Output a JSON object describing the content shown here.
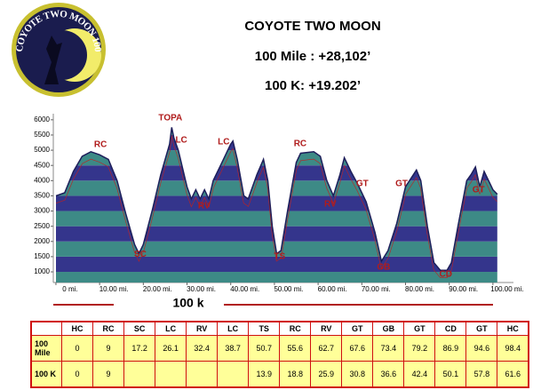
{
  "header": {
    "logo_text": "COYOTE TWO MOON 100",
    "title": "COYOTE TWO MOON",
    "line1": "100 Mile : +28,102’",
    "line2": "100 K: +19.202’"
  },
  "chart_data": {
    "type": "area",
    "x": [
      0,
      2,
      4,
      6,
      8,
      10,
      12,
      14,
      16,
      18,
      19,
      20,
      22,
      24,
      26,
      26.5,
      27,
      28,
      30,
      31,
      32,
      33,
      34,
      35,
      36,
      38,
      40,
      40.5,
      41.5,
      43,
      44,
      46,
      47.5,
      48.5,
      49.5,
      50.5,
      51.5,
      53,
      55,
      56,
      59,
      60.5,
      62,
      63.5,
      65,
      66,
      67.5,
      69,
      71,
      73,
      74.5,
      76,
      78,
      80,
      82.5,
      83.5,
      85,
      86.5,
      88,
      89.5,
      90.5,
      92,
      94,
      95,
      96,
      97,
      98,
      99,
      100,
      101
    ],
    "values": [
      3500,
      3600,
      4300,
      4800,
      4950,
      4850,
      4700,
      4000,
      2900,
      1900,
      1600,
      1900,
      3000,
      4200,
      5200,
      5750,
      5400,
      5000,
      3800,
      3400,
      3700,
      3400,
      3700,
      3400,
      4000,
      4600,
      5200,
      5300,
      4700,
      3500,
      3400,
      4200,
      4700,
      4000,
      2500,
      1600,
      1700,
      3000,
      4600,
      4900,
      4950,
      4800,
      4000,
      3500,
      4200,
      4750,
      4300,
      3900,
      3300,
      2300,
      1350,
      1700,
      2600,
      3800,
      4350,
      4000,
      2500,
      1300,
      1050,
      1050,
      1300,
      2500,
      4000,
      4200,
      4450,
      3800,
      4300,
      4000,
      3700,
      3550
    ],
    "color": "#1e1e5a",
    "band_colors": [
      "#3d8a86",
      "#34358c"
    ],
    "xlim": [
      -0.6,
      104.7
    ],
    "ylim": [
      650,
      6200
    ],
    "xticks": [
      {
        "value": 0,
        "label": "0 mi."
      },
      {
        "value": 10,
        "label": "10.00 mi."
      },
      {
        "value": 20,
        "label": "20.00 mi."
      },
      {
        "value": 30,
        "label": "30.00 mi."
      },
      {
        "value": 40,
        "label": "40.00 mi."
      },
      {
        "value": 50,
        "label": "50.00 mi."
      },
      {
        "value": 60,
        "label": "60.00 mi."
      },
      {
        "value": 70,
        "label": "70.00 mi."
      },
      {
        "value": 80,
        "label": "80.00 mi."
      },
      {
        "value": 90,
        "label": "90.00 mi."
      },
      {
        "value": 100,
        "label": "100.00 mi."
      }
    ],
    "yticks": [
      1000,
      1500,
      2000,
      2500,
      3000,
      3500,
      4000,
      4500,
      5000,
      5500,
      6000
    ],
    "annotation_color": "#b01c1c",
    "annotations": [
      {
        "text": "RC",
        "x": 10.2,
        "y": 5180
      },
      {
        "text": "TOPA",
        "x": 26.2,
        "y": 6060
      },
      {
        "text": "LC",
        "x": 28.7,
        "y": 5330
      },
      {
        "text": "SC",
        "x": 19.3,
        "y": 1580
      },
      {
        "text": "RV",
        "x": 33.9,
        "y": 3160
      },
      {
        "text": "LC",
        "x": 38.4,
        "y": 5270
      },
      {
        "text": "TS",
        "x": 51.2,
        "y": 1500
      },
      {
        "text": "RC",
        "x": 55.9,
        "y": 5210
      },
      {
        "text": "RV",
        "x": 62.8,
        "y": 3220
      },
      {
        "text": "GT",
        "x": 70.1,
        "y": 3890
      },
      {
        "text": "GT",
        "x": 79.1,
        "y": 3890
      },
      {
        "text": "GB",
        "x": 75,
        "y": 1150
      },
      {
        "text": "CD",
        "x": 89.2,
        "y": 910
      },
      {
        "text": "GT",
        "x": 96.7,
        "y": 3690
      }
    ],
    "subtitle": "100 k"
  },
  "table": {
    "header": [
      "HC",
      "RC",
      "SC",
      "LC",
      "RV",
      "LC",
      "TS",
      "RC",
      "RV",
      "GT",
      "GB",
      "GT",
      "CD",
      "GT",
      "HC"
    ],
    "rows": [
      {
        "label": "100 Mile",
        "cells": [
          0,
          9,
          17.2,
          26.1,
          32.4,
          38.7,
          50.7,
          55.6,
          62.7,
          67.6,
          73.4,
          79.2,
          86.9,
          94.6,
          98.4
        ]
      },
      {
        "label": "100 K",
        "cells": [
          0,
          9,
          null,
          null,
          null,
          null,
          13.9,
          18.8,
          25.9,
          30.8,
          36.6,
          42.4,
          50.1,
          57.8,
          61.6
        ]
      }
    ]
  }
}
